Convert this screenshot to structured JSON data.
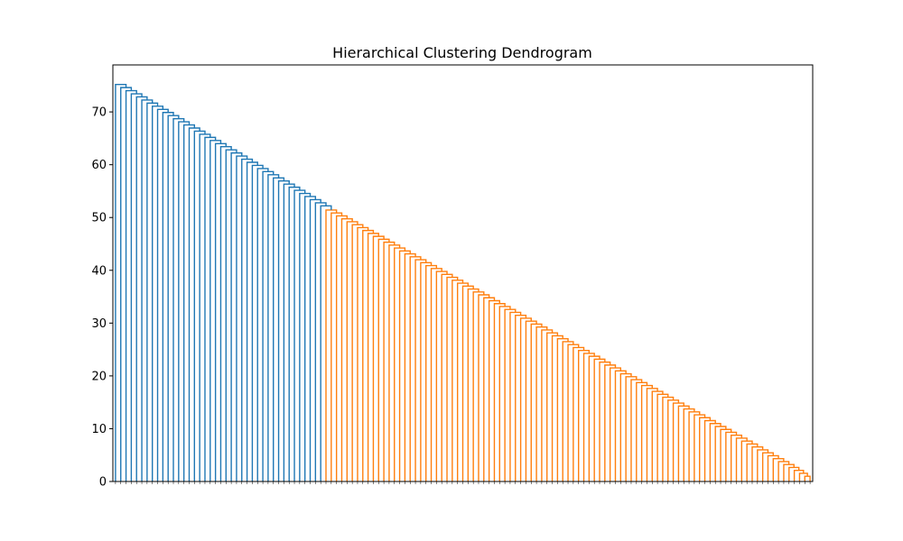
{
  "chart_data": {
    "type": "dendrogram",
    "title": "Hierarchical Clustering Dendrogram",
    "xlabel": "",
    "ylabel": "",
    "ylim": [
      0,
      78.9
    ],
    "yticks": [
      0,
      10,
      20,
      30,
      40,
      50,
      60,
      70
    ],
    "grid": false,
    "legend": "none",
    "leaf_count": 133,
    "top_merge_height": 75.2,
    "cluster_split_height": 52.2,
    "bottom_merge_height": 1.0,
    "clusters": [
      {
        "color": "#1f77b4",
        "leaves": 40
      },
      {
        "color": "#ff7f0e",
        "leaves": 93
      }
    ]
  }
}
